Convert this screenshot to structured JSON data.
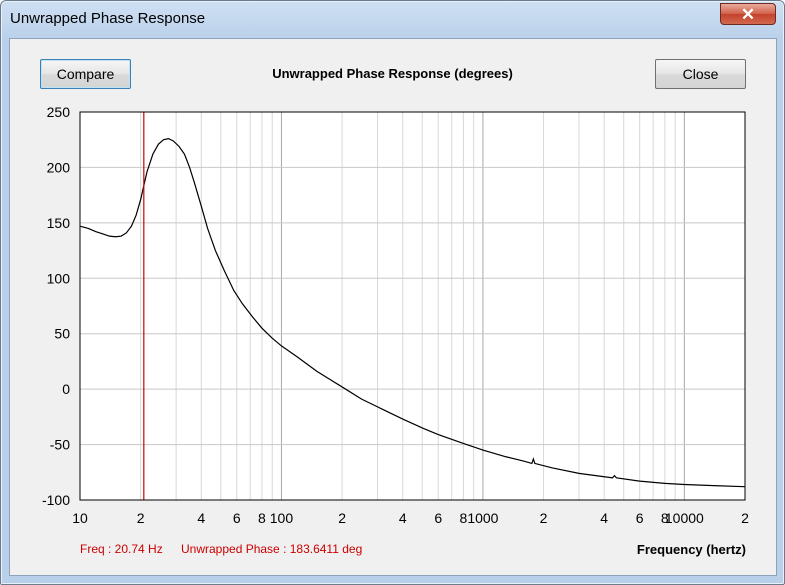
{
  "window": {
    "title": "Unwrapped Phase Response",
    "close_glyph": "✕"
  },
  "toolbar": {
    "compare_label": "Compare",
    "close_label": "Close"
  },
  "readout": {
    "freq": "Freq : 20.74 Hz",
    "phase": "Unwrapped Phase : 183.6411 deg"
  },
  "chart_data": {
    "type": "line",
    "title": "Unwrapped Phase Response (degrees)",
    "xlabel": "Frequency (hertz)",
    "ylabel": "",
    "xscale": "log",
    "xlim": [
      10,
      20000
    ],
    "ylim": [
      -100,
      250
    ],
    "grid": true,
    "yticks": [
      250,
      200,
      150,
      100,
      50,
      0,
      -50,
      -100
    ],
    "xtick_values": [
      10,
      20,
      40,
      60,
      80,
      100,
      200,
      400,
      600,
      800,
      1000,
      2000,
      4000,
      6000,
      8000,
      10000,
      20000
    ],
    "xtick_labels": [
      "10",
      "2",
      "4",
      "6",
      "8",
      "100",
      "2",
      "4",
      "6",
      "8",
      "1000",
      "2",
      "4",
      "6",
      "8",
      "10000",
      "2"
    ],
    "cursor": {
      "x": 20.74,
      "color": "#cc0000"
    },
    "series": [
      {
        "color": "#000000",
        "points": [
          [
            10,
            147
          ],
          [
            11,
            145
          ],
          [
            12,
            142
          ],
          [
            13,
            140
          ],
          [
            14,
            138
          ],
          [
            15,
            137.5
          ],
          [
            16,
            138
          ],
          [
            17,
            141
          ],
          [
            18,
            147
          ],
          [
            19,
            157
          ],
          [
            20,
            171
          ],
          [
            20.74,
            183.6
          ],
          [
            21.5,
            196
          ],
          [
            23,
            212
          ],
          [
            24.5,
            221
          ],
          [
            26,
            225
          ],
          [
            27.5,
            226
          ],
          [
            29,
            224
          ],
          [
            31,
            219
          ],
          [
            33,
            212
          ],
          [
            35,
            200
          ],
          [
            37,
            186
          ],
          [
            40,
            165
          ],
          [
            43,
            145
          ],
          [
            47,
            125
          ],
          [
            52,
            107
          ],
          [
            58,
            89
          ],
          [
            64,
            77
          ],
          [
            72,
            65
          ],
          [
            80,
            55
          ],
          [
            90,
            46
          ],
          [
            100,
            39
          ],
          [
            120,
            29
          ],
          [
            150,
            16
          ],
          [
            200,
            2
          ],
          [
            250,
            -9
          ],
          [
            300,
            -16
          ],
          [
            400,
            -27
          ],
          [
            500,
            -35
          ],
          [
            600,
            -41
          ],
          [
            800,
            -49
          ],
          [
            1000,
            -55
          ],
          [
            1300,
            -61
          ],
          [
            1600,
            -65
          ],
          [
            1750,
            -67
          ],
          [
            1780,
            -63
          ],
          [
            1810,
            -67
          ],
          [
            2200,
            -71
          ],
          [
            3000,
            -76
          ],
          [
            4000,
            -79
          ],
          [
            4400,
            -80
          ],
          [
            4500,
            -78
          ],
          [
            4600,
            -80
          ],
          [
            6000,
            -83
          ],
          [
            8000,
            -85
          ],
          [
            10000,
            -86
          ],
          [
            14000,
            -87
          ],
          [
            20000,
            -88
          ]
        ]
      }
    ]
  }
}
